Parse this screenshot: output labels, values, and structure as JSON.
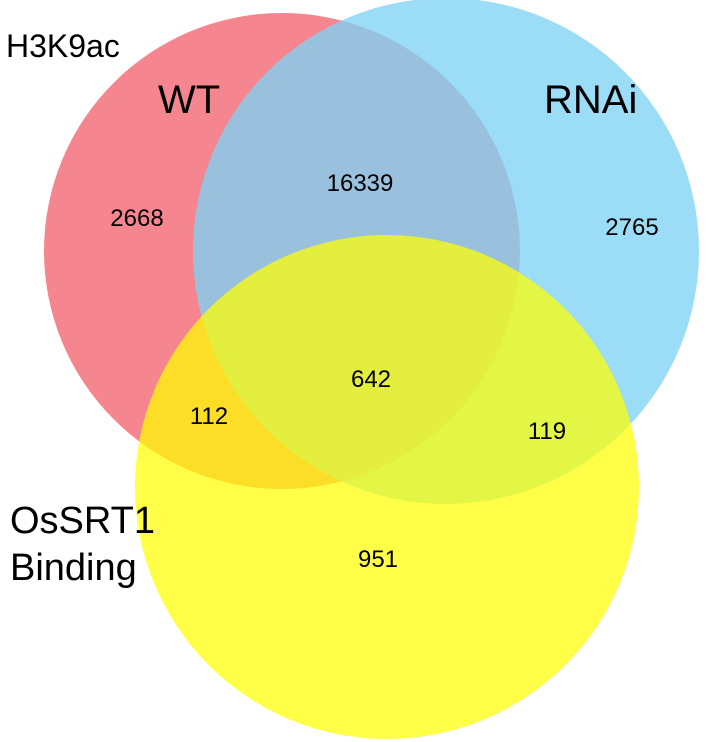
{
  "title": "H3K9ac",
  "sets": [
    {
      "id": "wt",
      "label": "WT",
      "color": "#f36b76"
    },
    {
      "id": "rnai",
      "label": "RNAi",
      "color": "#7fd2f5"
    },
    {
      "id": "binding",
      "label_line1": "OsSRT1",
      "label_line2": "Binding",
      "color": "#ffff00"
    }
  ],
  "regions": {
    "wt_only": "2668",
    "wt_rnai": "16339",
    "rnai_only": "2765",
    "wt_binding": "112",
    "all_three": "642",
    "rnai_binding": "119",
    "binding_only": "951"
  }
}
